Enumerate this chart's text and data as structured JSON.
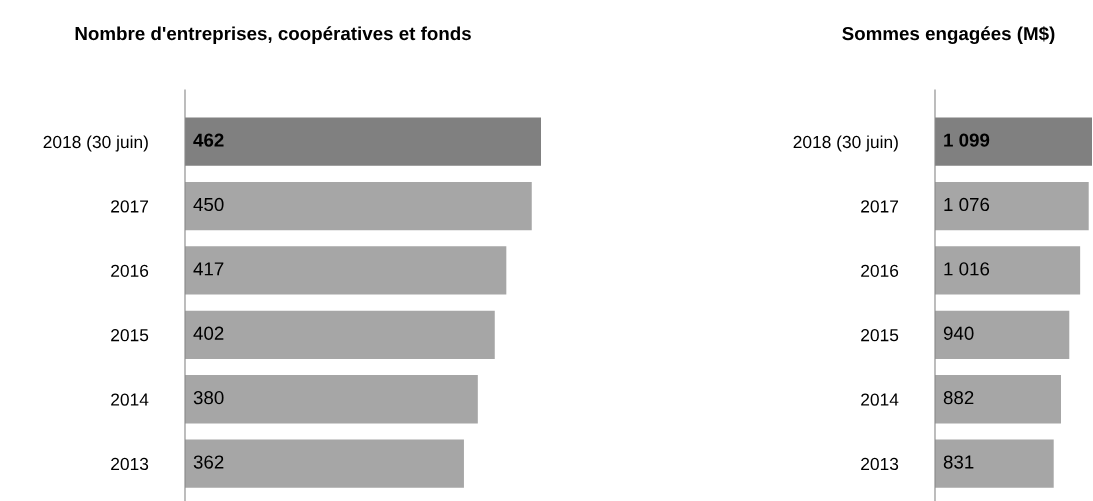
{
  "chart_data": [
    {
      "type": "bar",
      "orientation": "horizontal",
      "title": "Nombre d'entreprises, coopératives et fonds",
      "categories": [
        "2018 (30 juin)",
        "2017",
        "2016",
        "2015",
        "2014",
        "2013"
      ],
      "values": [
        462,
        450,
        417,
        402,
        380,
        362
      ],
      "colors": [
        "#808080",
        "#a6a6a6",
        "#a6a6a6",
        "#a6a6a6",
        "#a6a6a6",
        "#a6a6a6"
      ],
      "data_labels": true,
      "xlim": [
        0,
        462
      ],
      "tick_labels": "y",
      "grid": false,
      "legend": false
    },
    {
      "type": "bar",
      "orientation": "horizontal",
      "title": "Sommes engagées (M$)",
      "categories": [
        "2018 (30 juin)",
        "2017",
        "2016",
        "2015",
        "2014",
        "2013"
      ],
      "values": [
        1099,
        1076,
        1016,
        940,
        882,
        831
      ],
      "value_labels": [
        "1 099",
        "1 076",
        "1 016",
        "940",
        "882",
        "831"
      ],
      "colors": [
        "#808080",
        "#a6a6a6",
        "#a6a6a6",
        "#a6a6a6",
        "#a6a6a6",
        "#a6a6a6"
      ],
      "xlim": [
        0,
        1099
      ],
      "tick_labels": "y",
      "grid": false,
      "legend": false
    }
  ]
}
